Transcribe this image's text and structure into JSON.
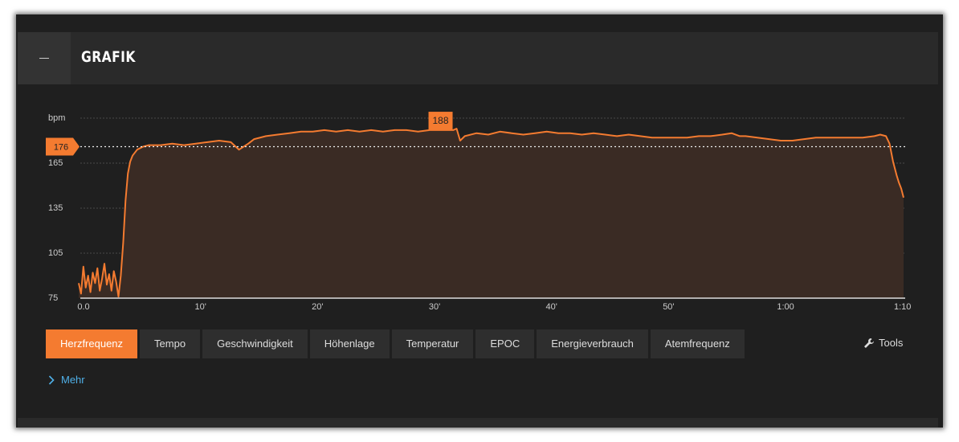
{
  "header": {
    "title": "GRAFIK"
  },
  "chart_data": {
    "type": "line",
    "y_label": "bpm",
    "color": "#f47b30",
    "fill": "#3a2b24",
    "x": [
      0,
      0.2,
      0.4,
      0.6,
      0.8,
      1.0,
      1.2,
      1.4,
      1.6,
      1.8,
      2.0,
      2.2,
      2.4,
      2.6,
      2.8,
      3.0,
      3.2,
      3.4,
      3.6,
      3.8,
      4.0,
      4.2,
      4.4,
      4.6,
      5,
      5.5,
      6,
      7,
      8,
      9,
      10,
      11,
      12,
      13,
      13.7,
      14.5,
      15,
      16,
      17,
      18,
      19,
      20,
      21,
      22,
      23,
      24,
      25,
      26,
      27,
      28,
      29,
      30,
      31,
      32,
      32.3,
      32.6,
      33,
      34,
      35,
      36,
      37,
      38,
      39,
      40,
      41,
      42,
      43,
      44,
      45,
      46,
      47,
      48,
      49,
      50,
      51,
      52,
      53,
      54,
      55,
      55.8,
      56.5,
      57,
      58,
      59,
      60,
      61,
      62,
      63,
      64,
      65,
      66,
      67,
      68,
      68.5,
      69,
      69.3,
      69.6,
      69.9,
      70.1,
      70.3,
      70.5
    ],
    "values": [
      85,
      78,
      96,
      82,
      90,
      79,
      92,
      85,
      95,
      80,
      88,
      98,
      84,
      91,
      80,
      93,
      86,
      76,
      90,
      112,
      140,
      158,
      166,
      170,
      174,
      176,
      177,
      177,
      178,
      177,
      178,
      179,
      180,
      179,
      174,
      178,
      181,
      183,
      184,
      185,
      186,
      186,
      187,
      186,
      187,
      186,
      187,
      186,
      187,
      187,
      186,
      187,
      187,
      187,
      188,
      180,
      183,
      185,
      184,
      186,
      185,
      184,
      185,
      186,
      185,
      185,
      184,
      185,
      184,
      183,
      184,
      183,
      182,
      182,
      182,
      182,
      183,
      183,
      184,
      185,
      183,
      183,
      182,
      181,
      180,
      180,
      181,
      182,
      182,
      182,
      182,
      182,
      183,
      184,
      183,
      178,
      166,
      157,
      152,
      148,
      142
    ],
    "xlim": [
      0,
      70.5
    ],
    "xticks": [
      {
        "value": 0,
        "label": "0.0"
      },
      {
        "value": 10,
        "label": "10'"
      },
      {
        "value": 20,
        "label": "20'"
      },
      {
        "value": 30,
        "label": "30'"
      },
      {
        "value": 40,
        "label": "40'"
      },
      {
        "value": 50,
        "label": "50'"
      },
      {
        "value": 60,
        "label": "1:00"
      },
      {
        "value": 70,
        "label": "1:10"
      }
    ],
    "ylim": [
      75,
      195
    ],
    "yticks": [
      75,
      105,
      135,
      165
    ],
    "grid": true,
    "average": 176,
    "max": 188
  },
  "tabs": [
    {
      "label": "Herzfrequenz",
      "active": true
    },
    {
      "label": "Tempo",
      "active": false
    },
    {
      "label": "Geschwindigkeit",
      "active": false
    },
    {
      "label": "Höhenlage",
      "active": false
    },
    {
      "label": "Temperatur",
      "active": false
    },
    {
      "label": "EPOC",
      "active": false
    },
    {
      "label": "Energieverbrauch",
      "active": false
    },
    {
      "label": "Atemfrequenz",
      "active": false
    }
  ],
  "tools": "Tools",
  "more": "Mehr"
}
